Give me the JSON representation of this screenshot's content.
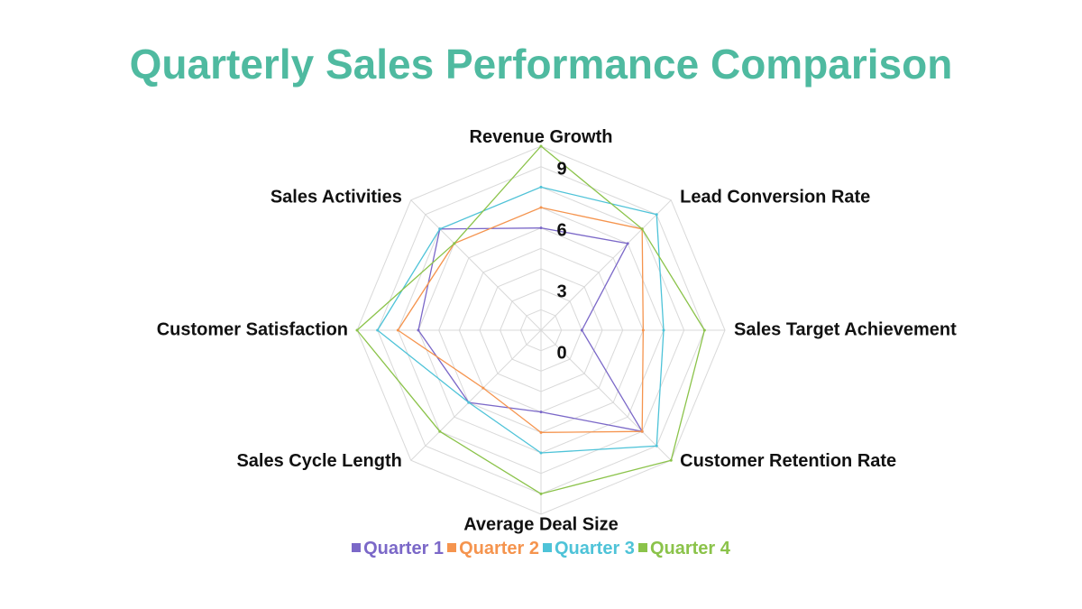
{
  "chart_data": {
    "type": "radar",
    "title": "Quarterly Sales Performance Comparison",
    "title_color": "#4fbaa0",
    "axes": [
      "Revenue Growth",
      "Lead Conversion Rate",
      "Sales Target Achievement",
      "Customer Retention Rate",
      "Average Deal Size",
      "Sales Cycle Length",
      "Customer Satisfaction",
      "Sales Activities"
    ],
    "range": [
      0,
      9
    ],
    "ticks": [
      0,
      3,
      6,
      9
    ],
    "series": [
      {
        "name": "Quarter 1",
        "color": "#7b68c8",
        "values": [
          5,
          6,
          2,
          7,
          4,
          5,
          6,
          7
        ]
      },
      {
        "name": "Quarter 2",
        "color": "#f5944e",
        "values": [
          6,
          7,
          5,
          7,
          5,
          4,
          7,
          6
        ]
      },
      {
        "name": "Quarter 3",
        "color": "#4ec3d8",
        "values": [
          7,
          8,
          6,
          8,
          6,
          5,
          8,
          7
        ]
      },
      {
        "name": "Quarter 4",
        "color": "#8bc34a",
        "values": [
          9,
          7,
          8,
          9,
          8,
          7,
          9,
          6
        ]
      }
    ],
    "legend_position": "bottom",
    "grid": true
  }
}
